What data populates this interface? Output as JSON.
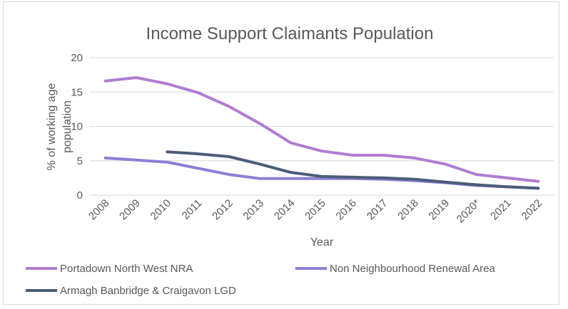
{
  "chart_data": {
    "type": "line",
    "title": "Income Support Claimants Population",
    "xlabel": "Year",
    "ylabel_lines": [
      "% of working age",
      "population"
    ],
    "ylim": [
      0,
      20
    ],
    "yticks": [
      "0",
      "5",
      "10",
      "15",
      "20"
    ],
    "categories": [
      "2008",
      "2009",
      "2010",
      "2011",
      "2012",
      "2013",
      "2014",
      "2015",
      "2016",
      "2017",
      "2018",
      "2019",
      "2020*",
      "2021",
      "2022"
    ],
    "grid": "horizontal",
    "legend_position": "bottom",
    "series": [
      {
        "name": "Portadown North West NRA",
        "color": "#b07cd1",
        "values": [
          16.6,
          17.1,
          16.2,
          14.9,
          12.9,
          10.4,
          7.6,
          6.4,
          5.8,
          5.8,
          5.4,
          4.5,
          3.0,
          2.5,
          2.0
        ]
      },
      {
        "name": "Non Neighbourhood Renewal Area",
        "color": "#8b7fd6",
        "values": [
          5.4,
          5.1,
          4.8,
          3.9,
          3.0,
          2.4,
          2.4,
          2.4,
          2.4,
          2.3,
          2.1,
          1.8,
          1.4,
          1.2,
          1.0
        ]
      },
      {
        "name": "Armagh Banbridge & Craigavon LGD",
        "color": "#4a5d7a",
        "values": [
          null,
          null,
          6.3,
          6.0,
          5.6,
          4.5,
          3.3,
          2.7,
          2.6,
          2.5,
          2.3,
          1.9,
          1.5,
          1.2,
          1.0
        ]
      }
    ]
  }
}
